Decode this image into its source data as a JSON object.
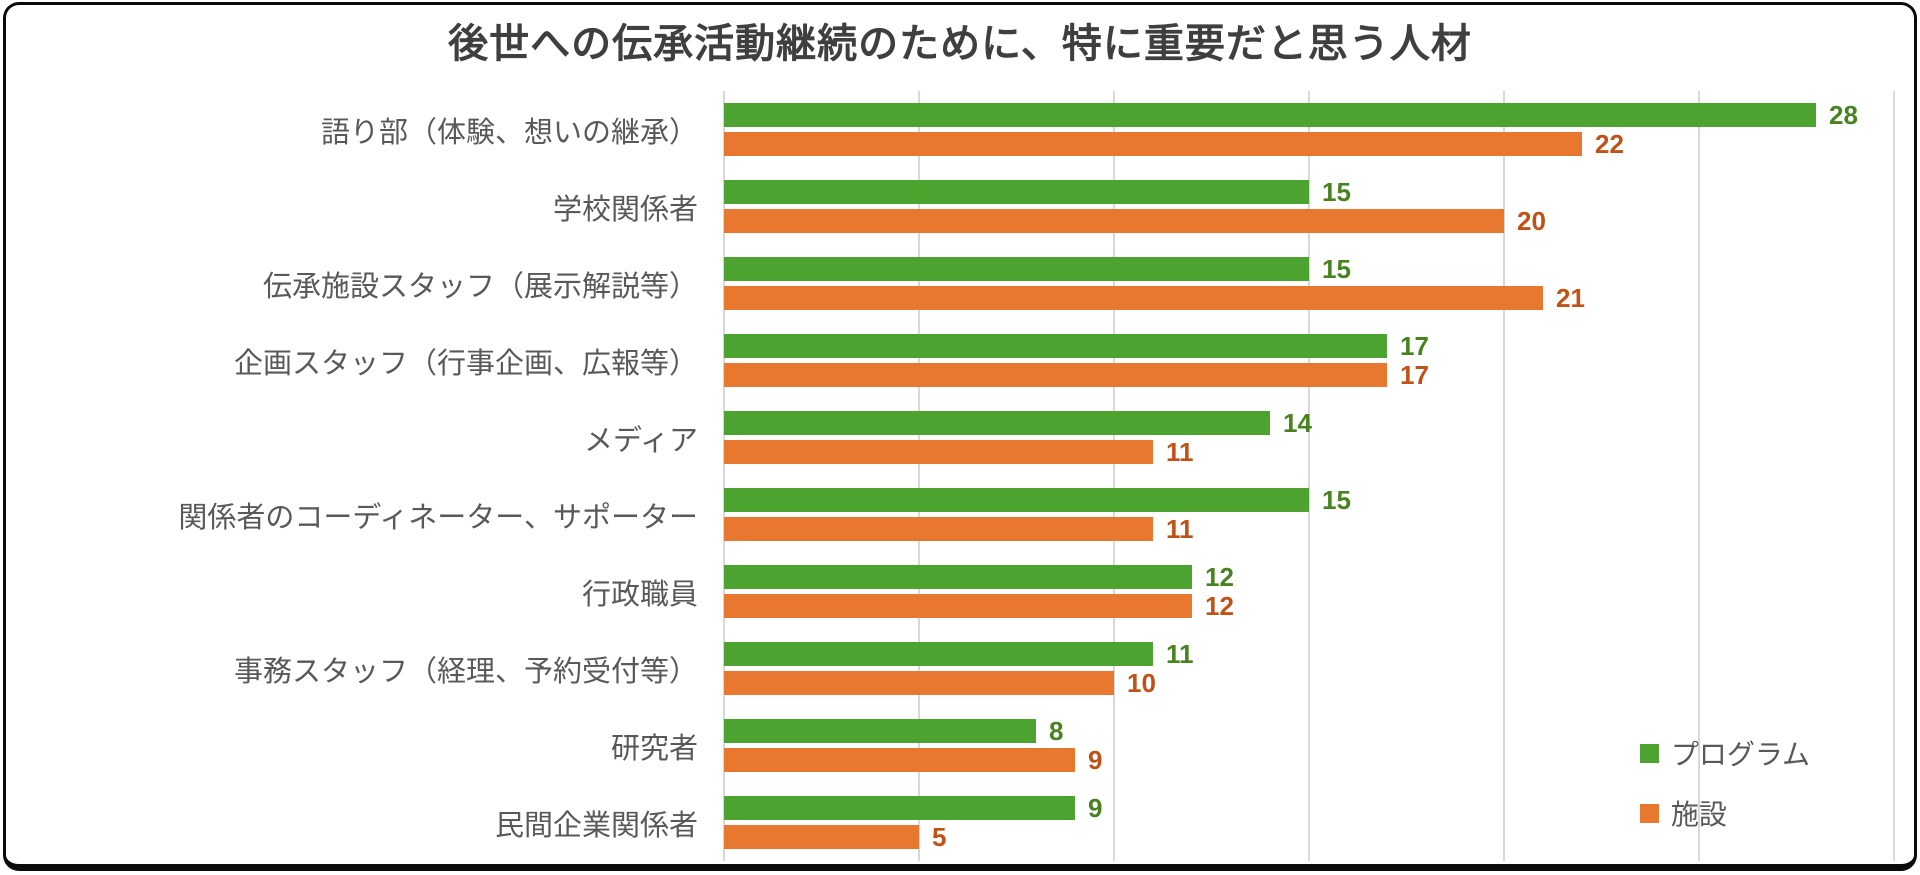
{
  "title": "後世への伝承活動継続のために、特に重要だと思う人材",
  "chart_data": {
    "type": "bar",
    "orientation": "horizontal",
    "title": "後世への伝承活動継続のために、特に重要だと思う人材",
    "categories": [
      "語り部（体験、想いの継承）",
      "学校関係者",
      "伝承施設スタッフ（展示解説等）",
      "企画スタッフ（行事企画、広報等）",
      "メディア",
      "関係者のコーディネーター、サポーター",
      "行政職員",
      "事務スタッフ（経理、予約受付等）",
      "研究者",
      "民間企業関係者"
    ],
    "series": [
      {
        "name": "プログラム",
        "color": "#4da32f",
        "label_color": "#48831f",
        "values": [
          28,
          15,
          15,
          17,
          14,
          15,
          12,
          11,
          8,
          9
        ]
      },
      {
        "name": "施設",
        "color": "#e8772f",
        "label_color": "#c05217",
        "values": [
          22,
          20,
          21,
          17,
          11,
          11,
          12,
          10,
          9,
          5
        ]
      }
    ],
    "xlim": [
      0,
      30
    ],
    "gridline_step": 5,
    "grid": true,
    "legend_position": "bottom-right",
    "data_labels": true
  },
  "colors": {
    "title_text": "#3f3f3f",
    "category_text": "#595959",
    "legend_text": "#595959",
    "gridline": "#d8d8d8",
    "frame_border": "#0b0b0b",
    "background": "#ffffff"
  }
}
